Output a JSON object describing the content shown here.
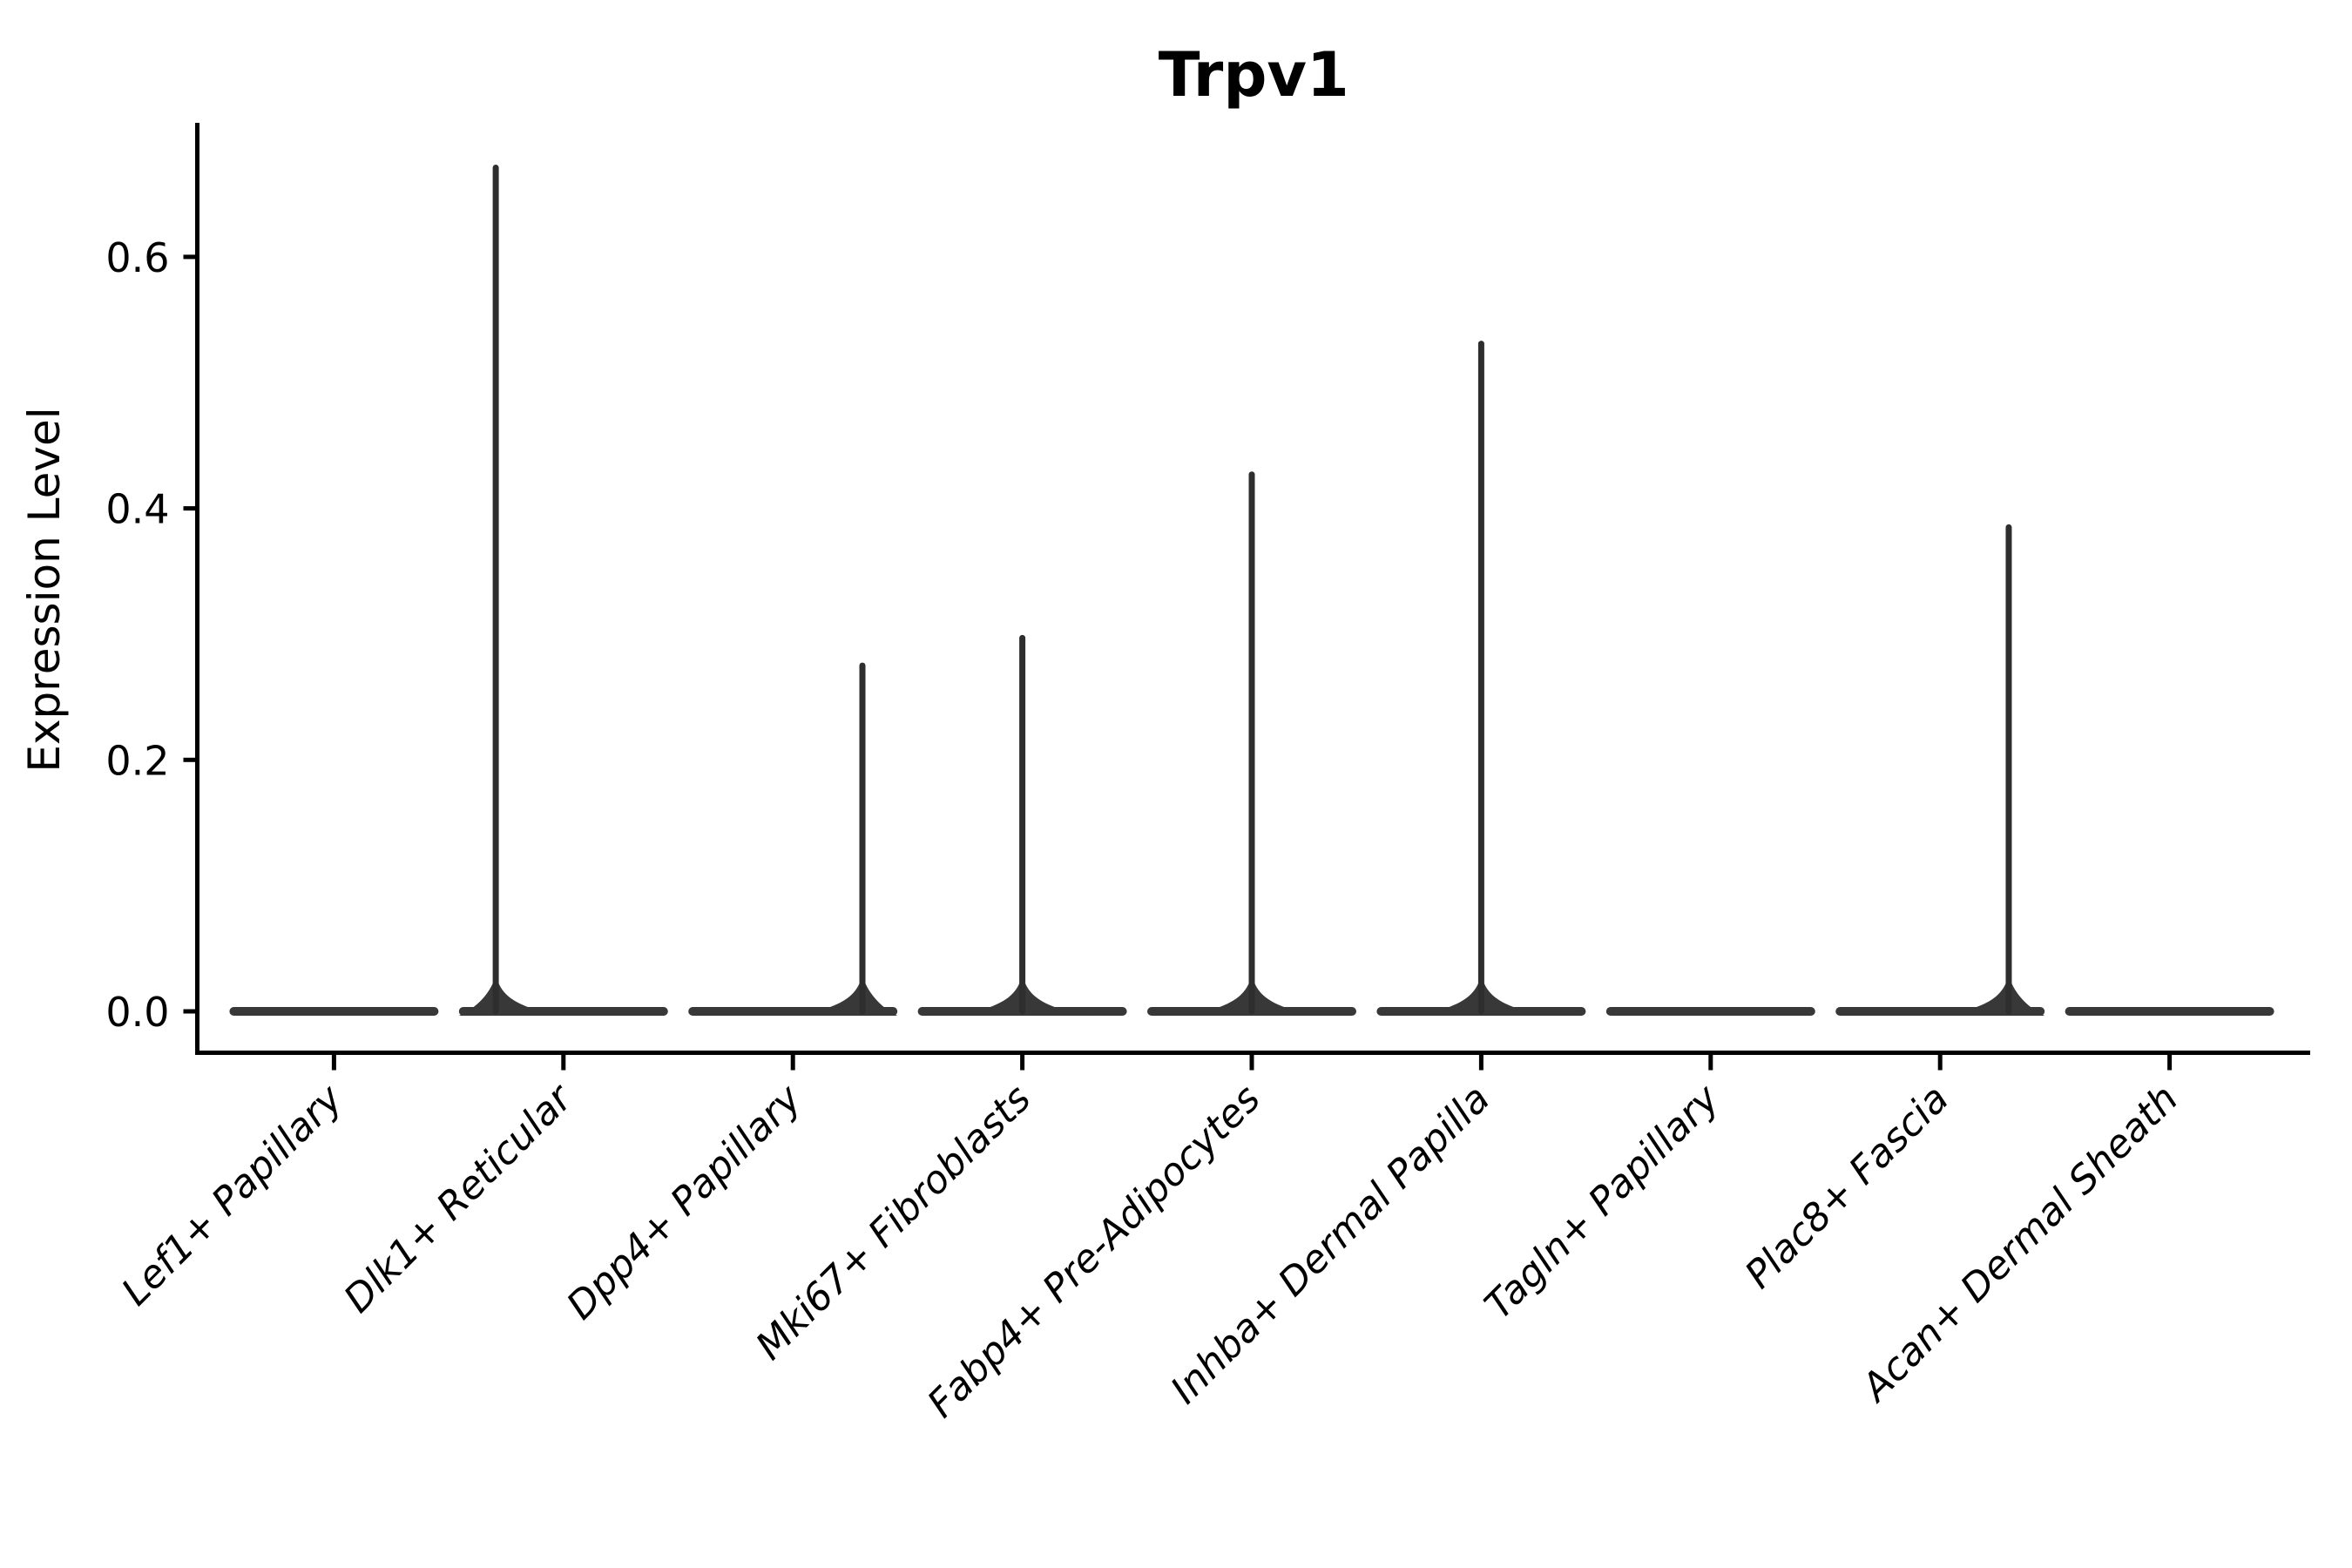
{
  "chart_data": {
    "type": "violin",
    "title": "Trpv1",
    "ylabel": "Expression Level",
    "xlabel": "",
    "yticks": [
      0.0,
      0.2,
      0.4,
      0.6
    ],
    "ylim": [
      -0.033,
      0.707
    ],
    "grid": false,
    "legend": "none",
    "baseline_value": 0.0,
    "categories": [
      "Lef1+ Papillary",
      "Dlk1+ Reticular",
      "Dpp4+ Papillary",
      "Mki67+ Fibroblasts",
      "Fabp4+ Pre-Adipocytes",
      "Inhba+ Dermal Papilla",
      "Tagln+ Papillary",
      "Plac8+ Fascia",
      "Acan+ Dermal Sheath"
    ],
    "violins": [
      {
        "category": "Lef1+ Papillary",
        "max_expression": 0.0,
        "has_spike": false,
        "spike_offset_frac": 0.0
      },
      {
        "category": "Dlk1+ Reticular",
        "max_expression": 0.673,
        "has_spike": true,
        "spike_offset_frac": -0.295
      },
      {
        "category": "Dpp4+ Papillary",
        "max_expression": 0.277,
        "has_spike": true,
        "spike_offset_frac": 0.303
      },
      {
        "category": "Mki67+ Fibroblasts",
        "max_expression": 0.299,
        "has_spike": true,
        "spike_offset_frac": 0.0
      },
      {
        "category": "Fabp4+ Pre-Adipocytes",
        "max_expression": 0.429,
        "has_spike": true,
        "spike_offset_frac": 0.0
      },
      {
        "category": "Inhba+ Dermal Papilla",
        "max_expression": 0.533,
        "has_spike": true,
        "spike_offset_frac": 0.0
      },
      {
        "category": "Tagln+ Papillary",
        "max_expression": 0.0,
        "has_spike": false,
        "spike_offset_frac": 0.0
      },
      {
        "category": "Plac8+ Fascia",
        "max_expression": 0.387,
        "has_spike": true,
        "spike_offset_frac": 0.299
      },
      {
        "category": "Acan+ Dermal Sheath",
        "max_expression": 0.0,
        "has_spike": false,
        "spike_offset_frac": 0.0
      }
    ],
    "colors": {
      "background": "#ffffff",
      "axis": "#000000",
      "text": "#000000",
      "violin_fill": "#383838",
      "spike_stroke": "#2e2e2e"
    }
  }
}
